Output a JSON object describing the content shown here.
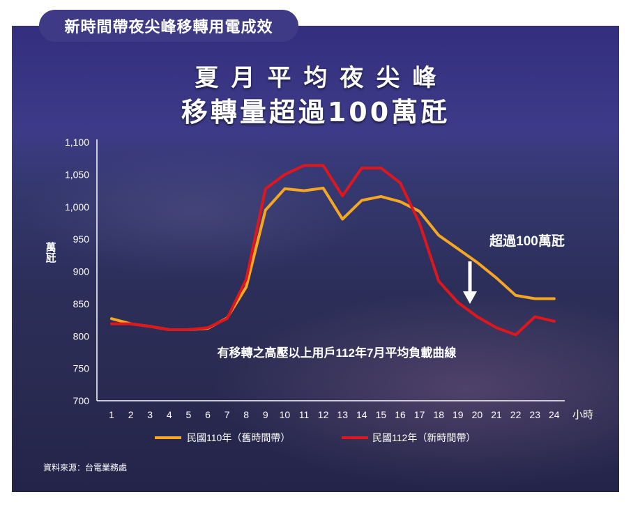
{
  "badge": "新時間帶夜尖峰移轉用電成效",
  "title_line1": "夏月平均夜尖峰",
  "title_line2": "移轉量超過100萬瓩",
  "annotation": "超過100萬瓩",
  "source": "資料來源：台電業務處",
  "colors": {
    "panel": "#2c2f5a",
    "series_110": "#f5a623",
    "series_112": "#e0161d",
    "badge": "#3e3a86"
  },
  "chart_data": {
    "type": "line",
    "title": "有移轉之高壓以上用戶112年7月平均負載曲線",
    "ylabel": "萬瓩",
    "xlabel": "小時",
    "x": [
      1,
      2,
      3,
      4,
      5,
      6,
      7,
      8,
      9,
      10,
      11,
      12,
      13,
      14,
      15,
      16,
      17,
      18,
      19,
      20,
      21,
      22,
      23,
      24
    ],
    "y_ticks": [
      "700",
      "750",
      "800",
      "850",
      "900",
      "950",
      "1,000",
      "1,050",
      "1,100"
    ],
    "ylim": [
      700,
      1100
    ],
    "series": [
      {
        "name": "民國110年（舊時間帶）",
        "color": "#f5a623",
        "values": [
          827,
          819,
          815,
          810,
          810,
          812,
          828,
          876,
          995,
          1028,
          1025,
          1029,
          981,
          1010,
          1016,
          1008,
          993,
          956,
          935,
          914,
          890,
          863,
          858,
          858
        ]
      },
      {
        "name": "民國112年（新時間帶）",
        "color": "#e0161d",
        "values": [
          819,
          819,
          815,
          810,
          810,
          813,
          827,
          888,
          1028,
          1050,
          1064,
          1064,
          1017,
          1060,
          1060,
          1037,
          975,
          885,
          852,
          830,
          813,
          802,
          830,
          823
        ]
      }
    ]
  }
}
